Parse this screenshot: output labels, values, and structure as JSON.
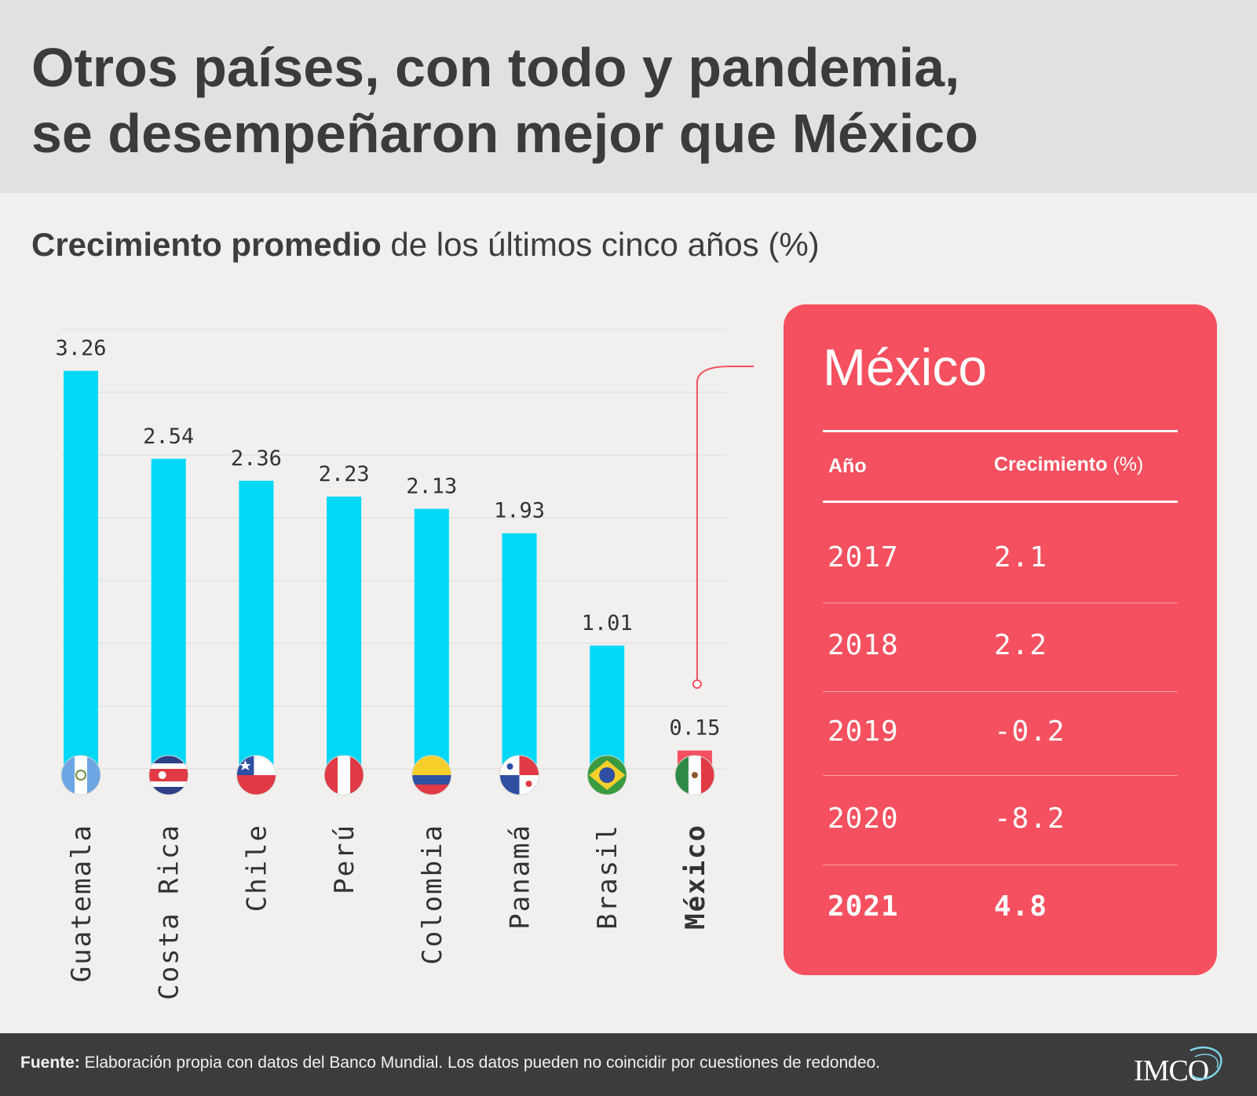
{
  "header": {
    "title_line1": "Otros países, con todo y pandemia,",
    "title_line2": "se desempeñaron mejor que México",
    "subtitle_bold": "Crecimiento promedio",
    "subtitle_rest": " de los últimos cinco años (%)"
  },
  "chart_data": {
    "type": "bar",
    "categories": [
      "Guatemala",
      "Costa Rica",
      "Chile",
      "Perú",
      "Colombia",
      "Panamá",
      "Brasil",
      "México"
    ],
    "values": [
      3.26,
      2.54,
      2.36,
      2.23,
      2.13,
      1.93,
      1.01,
      0.15
    ],
    "value_labels": [
      "3.26",
      "2.54",
      "2.36",
      "2.23",
      "2.13",
      "1.93",
      "1.01",
      "0.15"
    ],
    "highlight_category": "México",
    "ylim": [
      0,
      3.5
    ],
    "grid": true,
    "bar_color": "#00d8f6",
    "highlight_color": "#f4505f"
  },
  "flags": [
    "guatemala-flag",
    "costa-rica-flag",
    "chile-flag",
    "peru-flag",
    "colombia-flag",
    "panama-flag",
    "brazil-flag",
    "mexico-flag"
  ],
  "panel": {
    "title": "México",
    "col_year": "Año",
    "col_growth": "Crecimiento",
    "col_growth_unit": " (%)",
    "rows": [
      {
        "year": "2017",
        "value": "2.1"
      },
      {
        "year": "2018",
        "value": "2.2"
      },
      {
        "year": "2019",
        "value": "-0.2"
      },
      {
        "year": "2020",
        "value": "-8.2"
      },
      {
        "year": "2021",
        "value": "4.8"
      }
    ],
    "bg_color": "#f4505f"
  },
  "footer": {
    "label": "Fuente:",
    "text": " Elaboración propia con datos del Banco Mundial. Los datos pueden no coincidir por cuestiones de redondeo.",
    "logo": "IMCO"
  }
}
